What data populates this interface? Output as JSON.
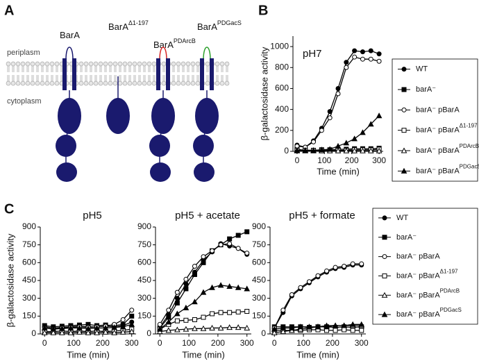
{
  "diagram": {
    "panel_label": "A",
    "periplasm": "periplasm",
    "cytoplasm": "cytoplasm",
    "proteins": [
      {
        "label": "BarA",
        "loop_color": "#1a1a6e"
      },
      {
        "label": "BarA",
        "superscript": "Δ1-197"
      },
      {
        "label": "BarA",
        "superscript": "PDArcB",
        "loop_color": "#d62728"
      },
      {
        "label": "BarA",
        "superscript": "PDGacS",
        "loop_color": "#2ca02c"
      }
    ]
  },
  "chart_data": [
    {
      "type": "line",
      "panel_label": "B",
      "title": "pH7",
      "xlabel": "Time (min)",
      "ylabel": "β-galactosidase activity",
      "x": [
        0,
        30,
        60,
        90,
        120,
        150,
        180,
        210,
        240,
        270,
        300
      ],
      "xlim": [
        -15,
        315
      ],
      "xticks": [
        0,
        100,
        200,
        300
      ],
      "ylim": [
        0,
        1100
      ],
      "yticks": [
        0,
        200,
        400,
        600,
        800,
        1000
      ],
      "series": [
        {
          "name": "WT",
          "marker": "circle",
          "filled": true,
          "color": "#000000",
          "values": [
            60,
            40,
            100,
            220,
            380,
            600,
            850,
            960,
            950,
            960,
            930
          ]
        },
        {
          "name": "barA⁻",
          "marker": "square",
          "filled": true,
          "color": "#000000",
          "values": [
            20,
            10,
            10,
            15,
            15,
            20,
            20,
            25,
            25,
            25,
            30
          ]
        },
        {
          "name": "barA⁻ pBarA",
          "marker": "circle",
          "filled": false,
          "color": "#000000",
          "values": [
            50,
            40,
            90,
            200,
            320,
            550,
            800,
            900,
            880,
            880,
            860
          ]
        },
        {
          "name": "barA⁻ pBarA",
          "superscript": "Δ1-197",
          "marker": "square",
          "filled": false,
          "color": "#000000",
          "values": [
            10,
            10,
            10,
            10,
            10,
            10,
            10,
            15,
            15,
            15,
            20
          ]
        },
        {
          "name": "barA⁻ pBarA",
          "superscript": "PDArcB",
          "marker": "triangle",
          "filled": false,
          "color": "#000000",
          "values": [
            5,
            5,
            5,
            5,
            5,
            5,
            5,
            5,
            5,
            5,
            5
          ]
        },
        {
          "name": "barA⁻ pBarA",
          "superscript": "PDGacS",
          "marker": "triangle",
          "filled": true,
          "color": "#000000",
          "values": [
            10,
            10,
            10,
            15,
            20,
            50,
            80,
            120,
            180,
            260,
            340
          ]
        }
      ]
    },
    {
      "type": "line",
      "panel_label": "C",
      "title": "pH5",
      "xlabel": "Time (min)",
      "ylabel": "β-galactosidase activity",
      "x": [
        0,
        30,
        60,
        90,
        120,
        150,
        180,
        210,
        240,
        270,
        300
      ],
      "xlim": [
        -15,
        315
      ],
      "xticks": [
        0,
        100,
        200,
        300
      ],
      "ylim": [
        0,
        900
      ],
      "yticks": [
        0,
        150,
        300,
        450,
        600,
        750,
        900
      ],
      "series": [
        {
          "name": "WT",
          "marker": "circle",
          "filled": true,
          "color": "#000000",
          "values": [
            60,
            50,
            55,
            60,
            65,
            60,
            60,
            65,
            60,
            70,
            100
          ]
        },
        {
          "name": "barA⁻",
          "marker": "square",
          "filled": true,
          "color": "#000000",
          "values": [
            70,
            60,
            65,
            70,
            75,
            80,
            70,
            75,
            70,
            80,
            150
          ]
        },
        {
          "name": "barA⁻ pBarA",
          "marker": "circle",
          "filled": false,
          "color": "#000000",
          "values": [
            50,
            40,
            50,
            55,
            60,
            55,
            60,
            65,
            80,
            120,
            200
          ]
        },
        {
          "name": "barA⁻ pBarA",
          "superscript": "Δ1-197",
          "marker": "square",
          "filled": false,
          "color": "#000000",
          "values": [
            20,
            20,
            25,
            20,
            25,
            20,
            25,
            20,
            25,
            30,
            40
          ]
        },
        {
          "name": "barA⁻ pBarA",
          "superscript": "PDArcB",
          "marker": "triangle",
          "filled": false,
          "color": "#000000",
          "values": [
            10,
            10,
            10,
            10,
            15,
            10,
            10,
            15,
            10,
            15,
            20
          ]
        },
        {
          "name": "barA⁻ pBarA",
          "superscript": "PDGacS",
          "marker": "triangle",
          "filled": true,
          "color": "#000000",
          "values": [
            50,
            40,
            45,
            50,
            50,
            45,
            50,
            50,
            55,
            60,
            80
          ]
        }
      ]
    },
    {
      "type": "line",
      "title": "pH5 + acetate",
      "xlabel": "Time (min)",
      "x": [
        0,
        30,
        60,
        90,
        120,
        150,
        180,
        210,
        240,
        270,
        300
      ],
      "xlim": [
        -15,
        315
      ],
      "xticks": [
        0,
        100,
        200,
        300
      ],
      "ylim": [
        0,
        900
      ],
      "yticks": [
        0,
        150,
        300,
        450,
        600,
        750,
        900
      ],
      "series": [
        {
          "marker": "circle",
          "filled": true,
          "color": "#000000",
          "values": [
            60,
            160,
            300,
            420,
            520,
            620,
            690,
            760,
            740,
            720,
            670
          ]
        },
        {
          "marker": "square",
          "filled": true,
          "color": "#000000",
          "values": [
            50,
            140,
            260,
            380,
            500,
            600,
            700,
            750,
            800,
            830,
            860
          ]
        },
        {
          "marker": "circle",
          "filled": false,
          "color": "#000000",
          "values": [
            80,
            200,
            350,
            460,
            570,
            650,
            700,
            750,
            760,
            720,
            680
          ]
        },
        {
          "marker": "square",
          "filled": false,
          "color": "#000000",
          "values": [
            40,
            80,
            110,
            115,
            120,
            140,
            170,
            180,
            180,
            185,
            190
          ]
        },
        {
          "marker": "triangle",
          "filled": false,
          "color": "#000000",
          "values": [
            20,
            30,
            35,
            40,
            45,
            45,
            50,
            50,
            55,
            55,
            50
          ]
        },
        {
          "marker": "triangle",
          "filled": true,
          "color": "#000000",
          "values": [
            40,
            100,
            170,
            220,
            270,
            350,
            390,
            410,
            400,
            390,
            380
          ]
        }
      ]
    },
    {
      "type": "line",
      "title": "pH5 + formate",
      "xlabel": "Time (min)",
      "x": [
        0,
        30,
        60,
        90,
        120,
        150,
        180,
        210,
        240,
        270,
        300
      ],
      "xlim": [
        -15,
        315
      ],
      "xticks": [
        0,
        100,
        200,
        300
      ],
      "ylim": [
        0,
        900
      ],
      "yticks": [
        0,
        150,
        300,
        450,
        600,
        750,
        900
      ],
      "series": [
        {
          "marker": "circle",
          "filled": true,
          "color": "#000000",
          "values": [
            50,
            180,
            320,
            380,
            430,
            480,
            520,
            550,
            560,
            580,
            580
          ]
        },
        {
          "marker": "square",
          "filled": true,
          "color": "#000000",
          "values": [
            60,
            60,
            60,
            60,
            55,
            60,
            60,
            55,
            60,
            55,
            60
          ]
        },
        {
          "marker": "circle",
          "filled": false,
          "color": "#000000",
          "values": [
            50,
            200,
            330,
            390,
            440,
            490,
            530,
            560,
            570,
            590,
            590
          ]
        },
        {
          "marker": "square",
          "filled": false,
          "color": "#000000",
          "values": [
            30,
            30,
            30,
            30,
            35,
            35,
            30,
            30,
            35,
            30,
            30
          ]
        },
        {
          "marker": "triangle",
          "filled": false,
          "color": "#000000",
          "values": [
            10,
            20,
            30,
            40,
            50,
            60,
            70,
            70,
            70,
            70,
            70
          ]
        },
        {
          "marker": "triangle",
          "filled": true,
          "color": "#000000",
          "values": [
            40,
            50,
            50,
            60,
            60,
            60,
            60,
            70,
            70,
            80,
            80
          ]
        }
      ]
    }
  ]
}
